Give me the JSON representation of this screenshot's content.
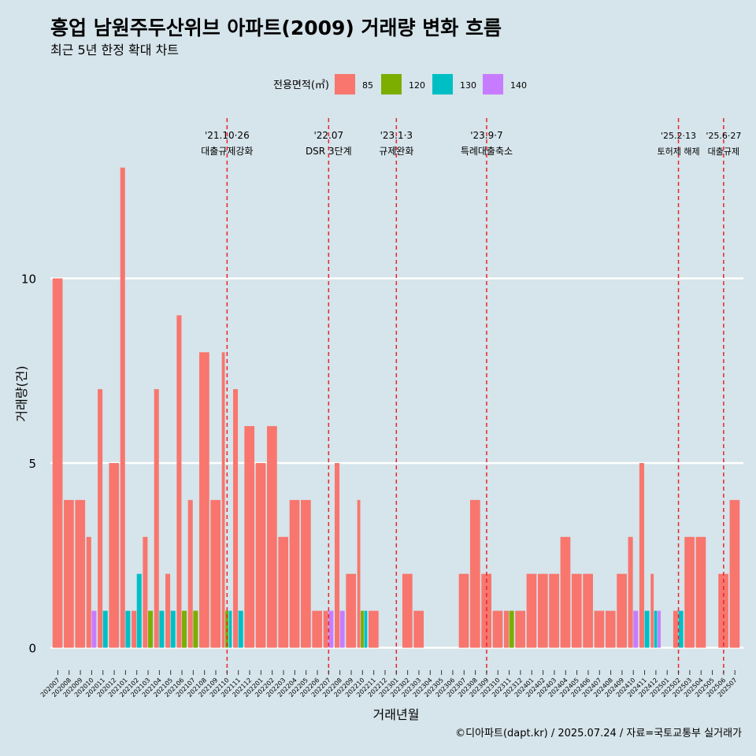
{
  "chart_data": {
    "type": "bar",
    "title": "흥업 남원주두산위브 아파트(2009) 거래량 변화 흐름",
    "subtitle": "최근 5년 한정 확대 차트",
    "xlabel": "거래년월",
    "ylabel": "거래량(건)",
    "caption": "©디아파트(dapt.kr) / 2025.07.24 / 자료=국토교통부 실거래가",
    "legend": {
      "title": "전용면적(㎡)",
      "position": "top"
    },
    "ylim": [
      0,
      14
    ],
    "yticks": [
      0,
      5,
      10
    ],
    "grid": true,
    "categories": [
      "202007",
      "202008",
      "202009",
      "202010",
      "202011",
      "202012",
      "202101",
      "202102",
      "202103",
      "202104",
      "202105",
      "202106",
      "202107",
      "202108",
      "202109",
      "202110",
      "202111",
      "202112",
      "202201",
      "202202",
      "202203",
      "202204",
      "202205",
      "202206",
      "202207",
      "202208",
      "202209",
      "202210",
      "202211",
      "202212",
      "202301",
      "202302",
      "202303",
      "202304",
      "202305",
      "202306",
      "202307",
      "202308",
      "202309",
      "202310",
      "202311",
      "202312",
      "202401",
      "202402",
      "202403",
      "202404",
      "202405",
      "202406",
      "202407",
      "202408",
      "202409",
      "202410",
      "202411",
      "202412",
      "202501",
      "202502",
      "202503",
      "202504",
      "202505",
      "202506",
      "202507"
    ],
    "series": [
      {
        "name": "85",
        "color": "#f8766d",
        "values": [
          10,
          4,
          4,
          3,
          7,
          5,
          13,
          1,
          3,
          7,
          2,
          9,
          4,
          8,
          4,
          8,
          7,
          6,
          5,
          6,
          3,
          4,
          4,
          1,
          1,
          5,
          2,
          4,
          1,
          0,
          0,
          2,
          1,
          0,
          0,
          0,
          2,
          4,
          2,
          1,
          1,
          1,
          2,
          2,
          2,
          3,
          2,
          2,
          1,
          1,
          2,
          3,
          5,
          2,
          0,
          1,
          3,
          3,
          0,
          2,
          4
        ]
      },
      {
        "name": "120",
        "color": "#7cae00",
        "values": [
          0,
          0,
          0,
          0,
          0,
          0,
          0,
          0,
          1,
          0,
          0,
          1,
          1,
          0,
          0,
          1,
          0,
          0,
          0,
          0,
          0,
          0,
          0,
          0,
          0,
          0,
          0,
          1,
          0,
          0,
          0,
          0,
          0,
          0,
          0,
          0,
          0,
          0,
          0,
          0,
          1,
          0,
          0,
          0,
          0,
          0,
          0,
          0,
          0,
          0,
          0,
          0,
          0,
          0,
          0,
          0,
          0,
          0,
          0,
          0,
          0
        ]
      },
      {
        "name": "130",
        "color": "#00bfc4",
        "values": [
          0,
          0,
          0,
          0,
          1,
          0,
          1,
          2,
          0,
          1,
          1,
          0,
          0,
          0,
          0,
          1,
          1,
          0,
          0,
          0,
          0,
          0,
          0,
          0,
          0,
          0,
          0,
          1,
          0,
          0,
          0,
          0,
          0,
          0,
          0,
          0,
          0,
          0,
          0,
          0,
          0,
          0,
          0,
          0,
          0,
          0,
          0,
          0,
          0,
          0,
          0,
          0,
          1,
          1,
          0,
          1,
          0,
          0,
          0,
          0,
          0
        ]
      },
      {
        "name": "140",
        "color": "#c77cff",
        "values": [
          0,
          0,
          0,
          1,
          0,
          0,
          0,
          0,
          0,
          0,
          0,
          0,
          0,
          0,
          0,
          0,
          0,
          0,
          0,
          0,
          0,
          0,
          0,
          0,
          1,
          1,
          0,
          0,
          0,
          0,
          0,
          0,
          0,
          0,
          0,
          0,
          0,
          0,
          0,
          0,
          0,
          0,
          0,
          0,
          0,
          0,
          0,
          0,
          0,
          0,
          0,
          1,
          0,
          1,
          0,
          0,
          0,
          0,
          0,
          0,
          0
        ]
      }
    ],
    "annotations": [
      {
        "at": "202110",
        "line1": "'21.10·26",
        "line2": "대출규제강화"
      },
      {
        "at": "202207",
        "line1": "'22.07",
        "line2": "DSR 3단계"
      },
      {
        "at": "202301",
        "line1": "'23.1·3",
        "line2": "규제완화"
      },
      {
        "at": "202309",
        "line1": "'23.9·7",
        "line2": "특례대출축소"
      },
      {
        "at": "202502",
        "line1": "'25.2·13",
        "line2": "토허제 해제"
      },
      {
        "at": "202506",
        "line1": "'25.6·27",
        "line2": "대출규제"
      }
    ],
    "annotation_line_color": "#e8262a",
    "background": "#d6e4eb"
  }
}
